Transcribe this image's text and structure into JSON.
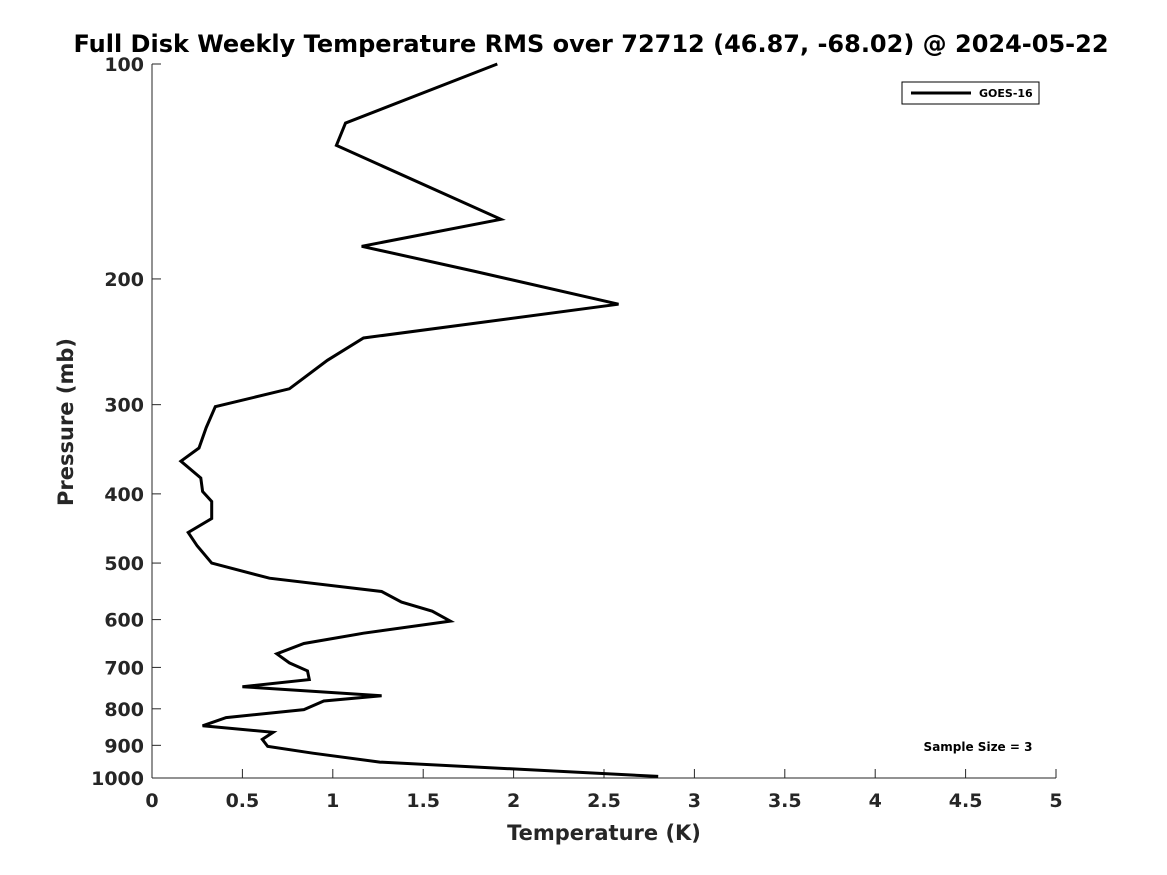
{
  "chart_data": {
    "type": "line",
    "title": "Full Disk Weekly Temperature RMS over 72712 (46.87, -68.02) @ 2024-05-22",
    "xlabel": "Temperature (K)",
    "ylabel": "Pressure (mb)",
    "xlim": [
      0,
      5
    ],
    "ylim": [
      100,
      1000
    ],
    "y_scale": "log",
    "y_reversed": true,
    "grid": false,
    "legend_position": "top-right",
    "x_ticks": [
      0,
      0.5,
      1,
      1.5,
      2,
      2.5,
      3,
      3.5,
      4,
      4.5,
      5
    ],
    "x_tick_labels": [
      "0",
      "0.5",
      "1",
      "1.5",
      "2",
      "2.5",
      "3",
      "3.5",
      "4",
      "4.5",
      "5"
    ],
    "y_ticks": [
      100,
      200,
      300,
      400,
      500,
      600,
      700,
      800,
      900,
      1000
    ],
    "y_tick_labels": [
      "100",
      "200",
      "300",
      "400",
      "500",
      "600",
      "700",
      "800",
      "900",
      "1000"
    ],
    "series": [
      {
        "name": "GOES-16",
        "color": "#000000",
        "x": [
          1.91,
          1.07,
          1.02,
          1.93,
          1.16,
          1.78,
          2.58,
          1.17,
          0.97,
          0.76,
          0.35,
          0.3,
          0.26,
          0.16,
          0.27,
          0.28,
          0.33,
          0.33,
          0.2,
          0.25,
          0.33,
          0.65,
          1.27,
          1.38,
          1.55,
          1.65,
          1.17,
          0.84,
          0.69,
          0.76,
          0.86,
          0.87,
          0.5,
          1.27,
          0.95,
          0.84,
          0.41,
          0.28,
          0.67,
          0.61,
          0.64,
          0.89,
          1.26,
          2.8
        ],
        "y": [
          100,
          121,
          130,
          165,
          180,
          195,
          217,
          242,
          260,
          285,
          302,
          323,
          345,
          360,
          380,
          397,
          410,
          433,
          453,
          473,
          500,
          525,
          548,
          567,
          584,
          603,
          627,
          648,
          670,
          690,
          708,
          728,
          745,
          767,
          780,
          802,
          823,
          845,
          863,
          883,
          903,
          923,
          950,
          995
        ]
      }
    ],
    "annotations": [
      "Sample Size = 3"
    ]
  }
}
